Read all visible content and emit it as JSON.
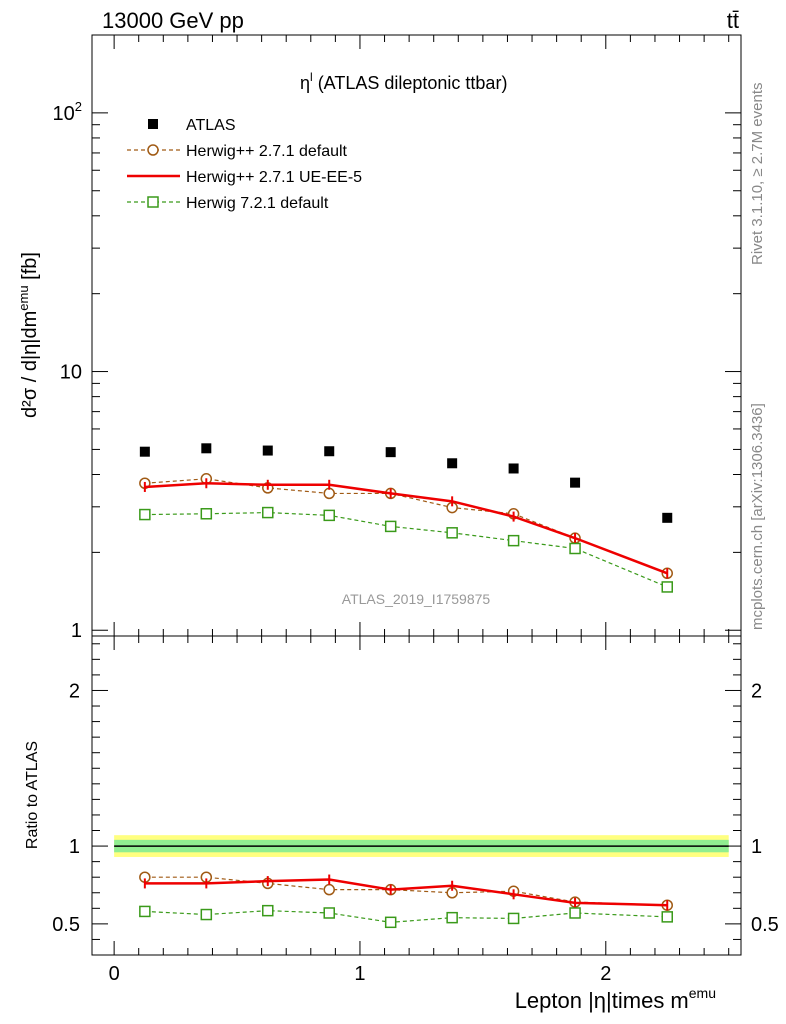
{
  "header": {
    "left": "13000 GeV pp",
    "right": "tt̄"
  },
  "side_texts": {
    "rivet": "Rivet 3.1.10, ≥ 2.7M events",
    "mcplots": "mcplots.cern.ch [arXiv:1306.3436]"
  },
  "chart_data": [
    {
      "type": "line",
      "title": "η",
      "title_sup": "l",
      "title_rest": " (ATLAS dileptonic ttbar)",
      "watermark": "ATLAS_2019_I1759875",
      "ylabel": "d²σ / d|η|dm",
      "ylabel_sup": "emu",
      "ylabel_unit": " [fb]",
      "yscale": "log",
      "ylim": [
        0.95,
        200
      ],
      "xlim": [
        -0.09,
        2.55
      ],
      "y_ticks": [
        {
          "value": 1,
          "label": "1"
        },
        {
          "value": 10,
          "label": "10"
        },
        {
          "value": 100,
          "label": "10",
          "sup": "2"
        }
      ],
      "x": [
        0.125,
        0.375,
        0.625,
        0.875,
        1.125,
        1.375,
        1.625,
        1.875,
        2.25
      ],
      "series": [
        {
          "name": "ATLAS",
          "color": "#000000",
          "marker": "filled-square",
          "line": "none",
          "values": [
            4.9,
            5.05,
            4.95,
            4.92,
            4.88,
            4.42,
            4.22,
            3.72,
            2.72
          ]
        },
        {
          "name": "Herwig++ 2.7.1 default",
          "color": "#a05a14",
          "marker": "open-circle",
          "line": "dashed",
          "values": [
            3.7,
            3.85,
            3.55,
            3.38,
            3.38,
            2.98,
            2.82,
            2.27,
            1.66
          ]
        },
        {
          "name": "Herwig++ 2.7.1 UE-EE-5",
          "color": "#ee0000",
          "marker": "none",
          "line": "solid",
          "values": [
            3.58,
            3.7,
            3.65,
            3.65,
            3.38,
            3.15,
            2.75,
            2.27,
            1.66
          ]
        },
        {
          "name": "Herwig 7.2.1 default",
          "color": "#3a9a1a",
          "marker": "open-square",
          "line": "dashed",
          "values": [
            2.8,
            2.82,
            2.85,
            2.78,
            2.52,
            2.38,
            2.22,
            2.07,
            1.47
          ]
        }
      ]
    },
    {
      "type": "line",
      "ylabel": "Ratio to ATLAS",
      "xlabel": "Lepton |η|times m",
      "xlabel_sup": "emu",
      "ylim": [
        0.3,
        2.35
      ],
      "xlim": [
        -0.09,
        2.55
      ],
      "y_ticks": [
        {
          "value": 0.5,
          "label": "0.5"
        },
        {
          "value": 1,
          "label": "1"
        },
        {
          "value": 2,
          "label": "2"
        }
      ],
      "x_ticks": [
        {
          "value": 0,
          "label": "0"
        },
        {
          "value": 1,
          "label": "1"
        },
        {
          "value": 2,
          "label": "2"
        }
      ],
      "band": {
        "inner_color": "#90ee90",
        "outer_color": "#ffff80",
        "inner_half_width": 0.04,
        "outer_half_width": 0.07
      },
      "x": [
        0.125,
        0.375,
        0.625,
        0.875,
        1.125,
        1.375,
        1.625,
        1.875,
        2.25
      ],
      "series": [
        {
          "name": "Herwig++ 2.7.1 default",
          "color": "#a05a14",
          "marker": "open-circle",
          "line": "dashed",
          "values": [
            0.8,
            0.8,
            0.76,
            0.72,
            0.72,
            0.7,
            0.71,
            0.64,
            0.62
          ]
        },
        {
          "name": "Herwig++ 2.7.1 UE-EE-5",
          "color": "#ee0000",
          "marker": "none",
          "line": "solid",
          "values": [
            0.76,
            0.76,
            0.775,
            0.785,
            0.72,
            0.745,
            0.69,
            0.635,
            0.62
          ]
        },
        {
          "name": "Herwig 7.2.1 default",
          "color": "#3a9a1a",
          "marker": "open-square",
          "line": "dashed",
          "values": [
            0.58,
            0.56,
            0.585,
            0.57,
            0.51,
            0.54,
            0.535,
            0.57,
            0.545
          ]
        }
      ]
    }
  ]
}
